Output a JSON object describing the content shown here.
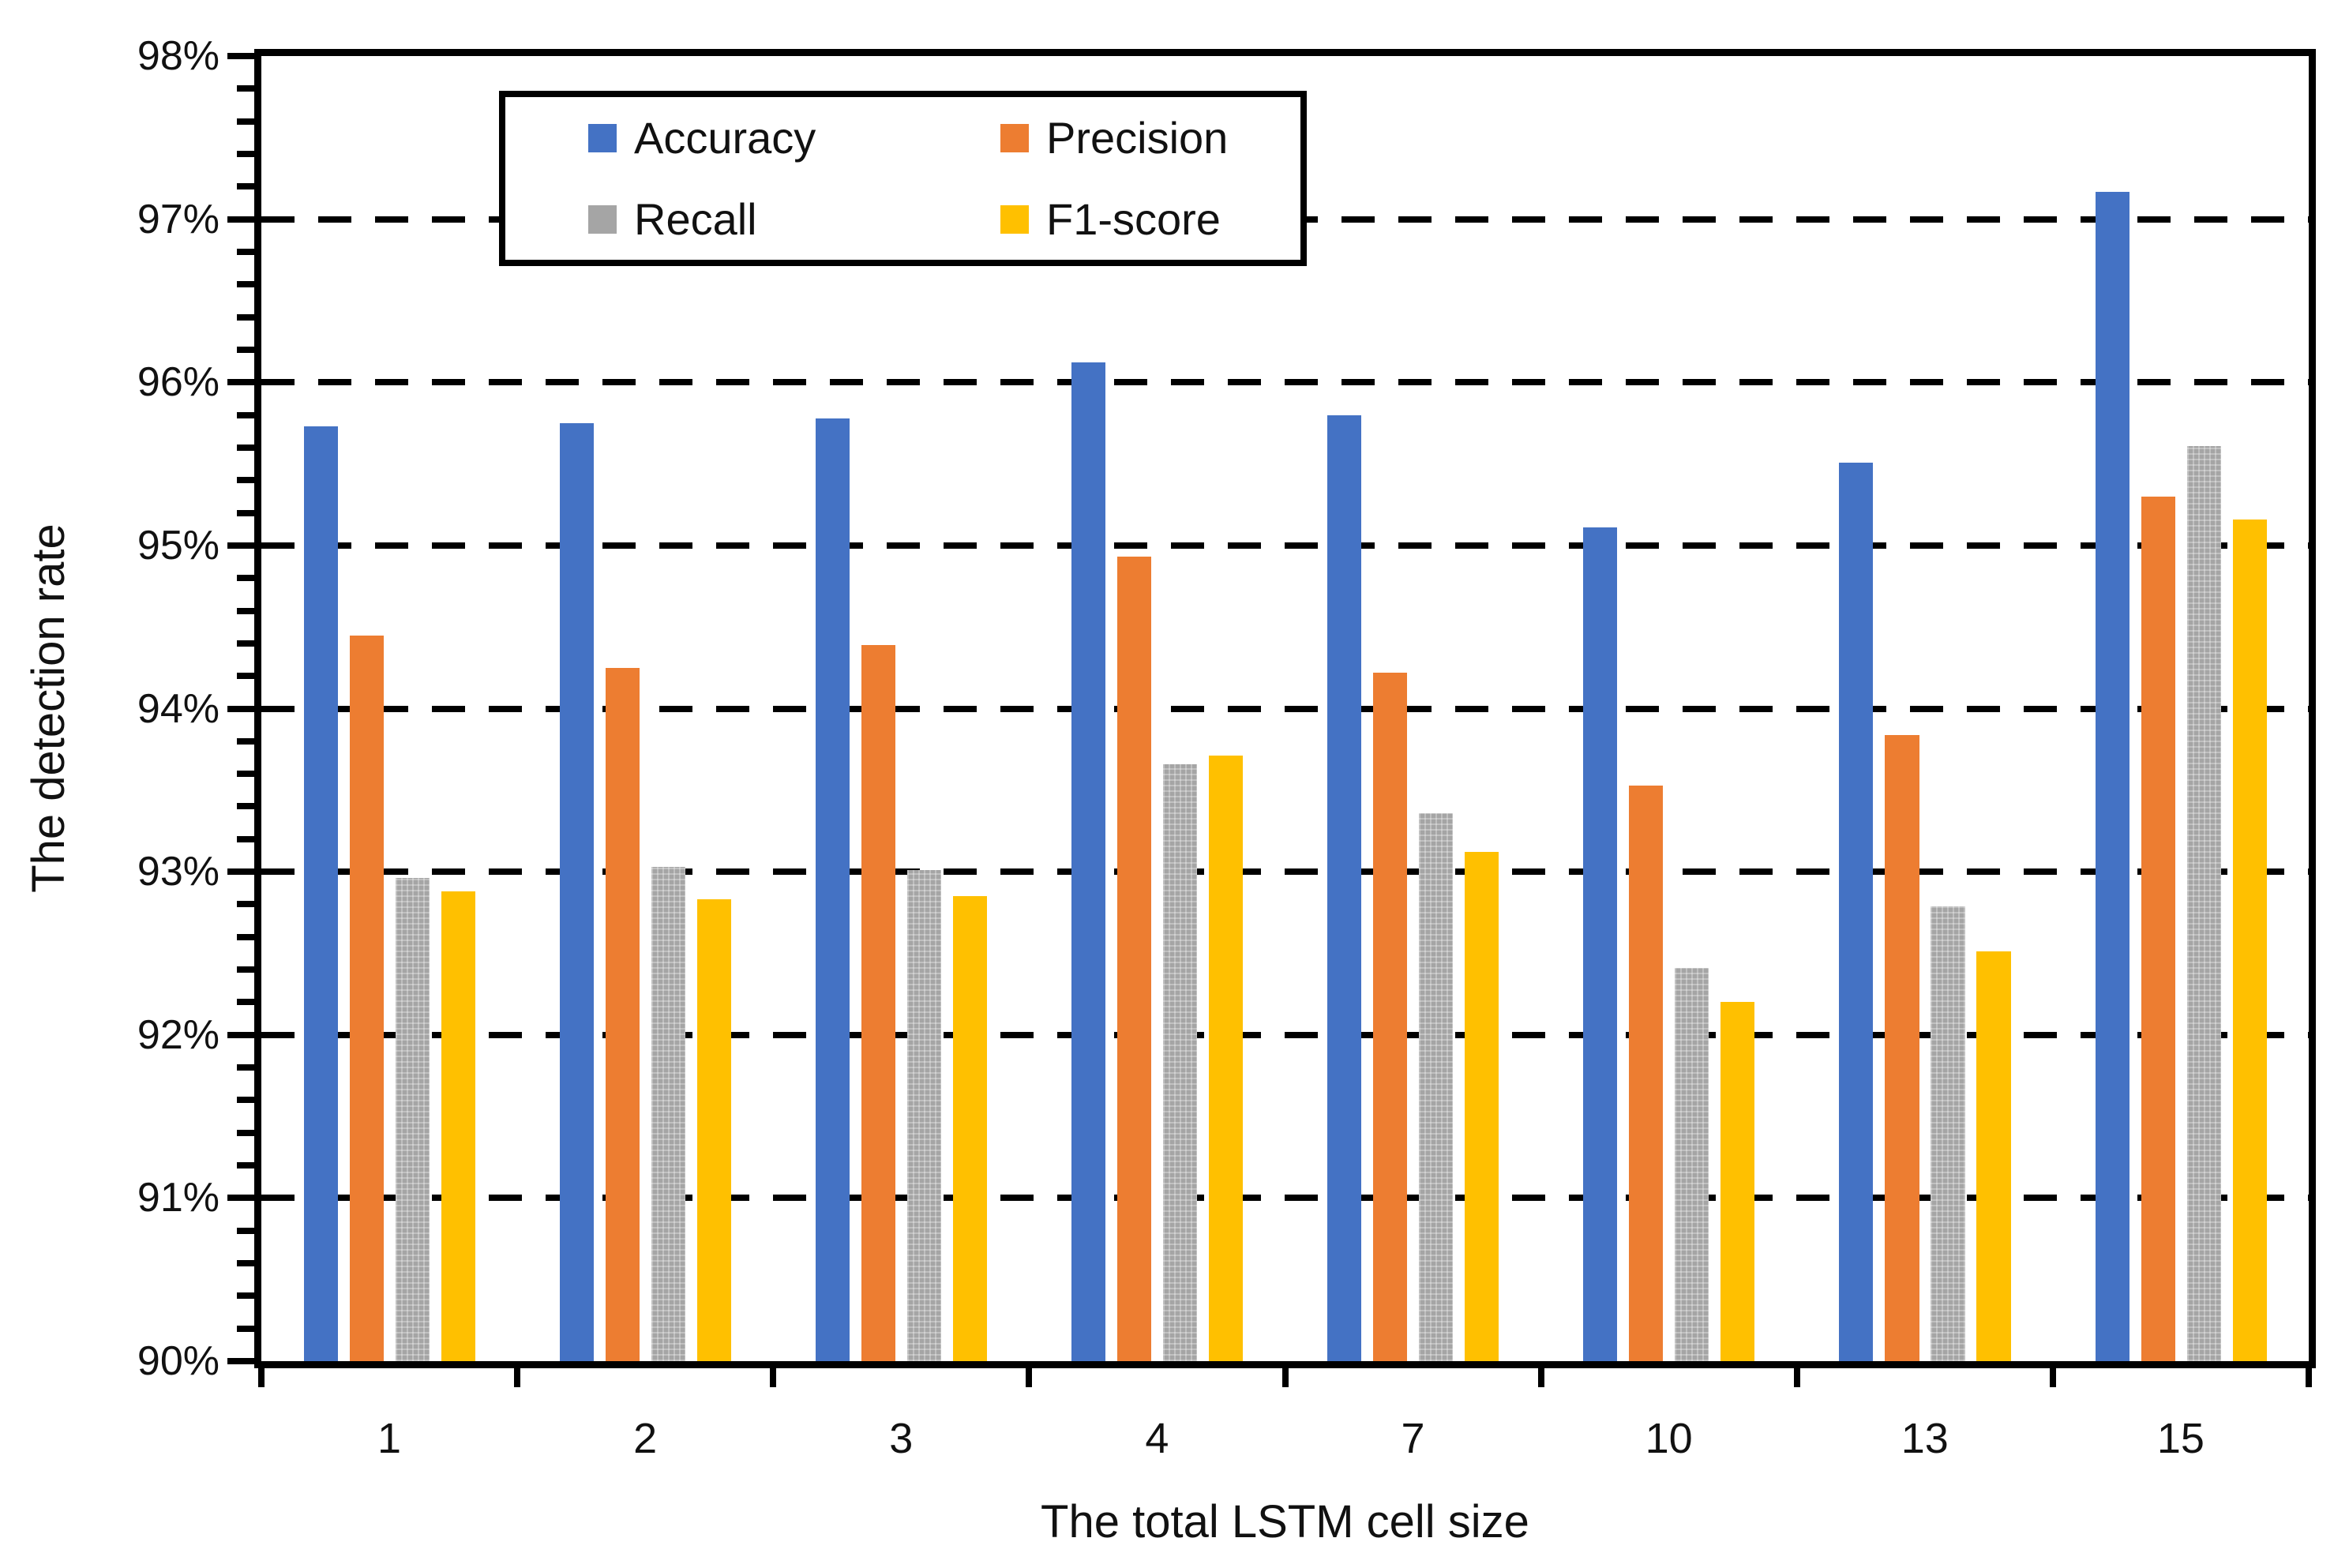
{
  "chart_data": {
    "type": "bar",
    "title": "",
    "xlabel": "The total LSTM cell size",
    "ylabel": "The detection rate",
    "categories": [
      "1",
      "2",
      "3",
      "4",
      "7",
      "10",
      "13",
      "15"
    ],
    "series": [
      {
        "name": "Accuracy",
        "color": "#4472C4",
        "values": [
          95.73,
          95.75,
          95.78,
          96.12,
          95.8,
          95.11,
          95.51,
          97.17
        ]
      },
      {
        "name": "Precision",
        "color": "#ED7D31",
        "values": [
          94.45,
          94.25,
          94.39,
          94.93,
          94.22,
          93.53,
          93.84,
          95.3
        ]
      },
      {
        "name": "Recall",
        "color": "#A5A5A5",
        "values": [
          92.96,
          93.03,
          93.01,
          93.66,
          93.36,
          92.41,
          92.79,
          95.61
        ]
      },
      {
        "name": "F1-score",
        "color": "#FFC000",
        "values": [
          92.88,
          92.83,
          92.85,
          93.71,
          93.12,
          92.2,
          92.51,
          95.16
        ]
      }
    ],
    "ylim": [
      90,
      98
    ],
    "y_ticks": [
      "90%",
      "91%",
      "92%",
      "93%",
      "94%",
      "95%",
      "96%",
      "97%",
      "98%"
    ],
    "y_major_step_pct": 1,
    "y_minor_step_pct": 0.2,
    "grid": "horizontal dashed lines at each 1% from 91% to 97%",
    "legend_position": "box inside plot, upper-left, 2 columns x 2 rows",
    "axis_color": "#000000",
    "background_color": "#ffffff"
  }
}
